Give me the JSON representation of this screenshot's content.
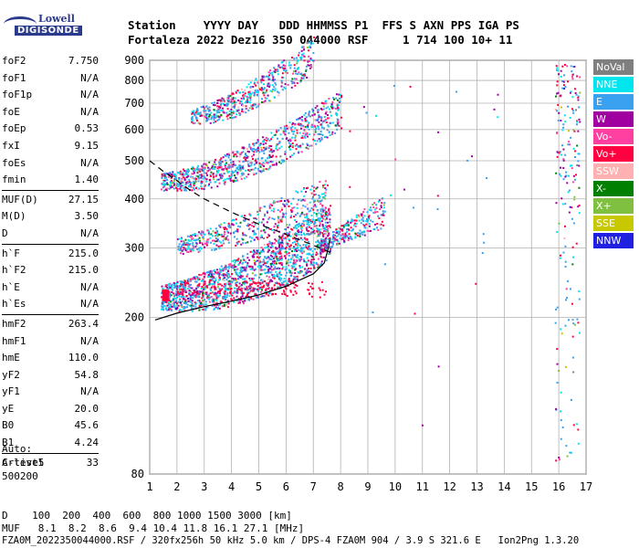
{
  "logo": {
    "line1": "Lowell",
    "line2": "DIGISONDE"
  },
  "header": {
    "line1": "Station    YYYY DAY   DDD HHMMSS P1  FFS S AXN PPS IGA PS",
    "line2": "Fortaleza 2022 Dez16 350 044000 RSF     1 714 100 10+ 11"
  },
  "params": [
    [
      {
        "label": "foF2",
        "value": "7.750"
      },
      {
        "label": "foF1",
        "value": "N/A"
      },
      {
        "label": "foF1p",
        "value": "N/A"
      },
      {
        "label": "foE",
        "value": "N/A"
      },
      {
        "label": "foEp",
        "value": "0.53"
      },
      {
        "label": "fxI",
        "value": "9.15"
      },
      {
        "label": "foEs",
        "value": "N/A"
      },
      {
        "label": "fmin",
        "value": "1.40"
      }
    ],
    [
      {
        "label": "MUF(D)",
        "value": "27.15"
      },
      {
        "label": "M(D)",
        "value": "3.50"
      },
      {
        "label": "D",
        "value": "N/A"
      }
    ],
    [
      {
        "label": "h`F",
        "value": "215.0"
      },
      {
        "label": "h`F2",
        "value": "215.0"
      },
      {
        "label": "h`E",
        "value": "N/A"
      },
      {
        "label": "h`Es",
        "value": "N/A"
      }
    ],
    [
      {
        "label": "hmF2",
        "value": "263.4"
      },
      {
        "label": "hmF1",
        "value": "N/A"
      },
      {
        "label": "hmE",
        "value": "110.0"
      },
      {
        "label": "yF2",
        "value": "54.8"
      },
      {
        "label": "yF1",
        "value": "N/A"
      },
      {
        "label": "yE",
        "value": "20.0"
      },
      {
        "label": "B0",
        "value": "45.6"
      },
      {
        "label": "B1",
        "value": "4.24"
      }
    ],
    [
      {
        "label": "C-level",
        "value": "33"
      }
    ]
  ],
  "auto": {
    "line1": "Auto:",
    "line2": "Artist5",
    "line3": "500200"
  },
  "legend": [
    {
      "label": "NoVal",
      "color": "#7f7f7f"
    },
    {
      "label": "NNE",
      "color": "#00e5ee"
    },
    {
      "label": "E",
      "color": "#3aa0f0"
    },
    {
      "label": "W",
      "color": "#a000a0"
    },
    {
      "label": "Vo-",
      "color": "#ff40a0"
    },
    {
      "label": "Vo+",
      "color": "#ff0040"
    },
    {
      "label": "SSW",
      "color": "#ffb0b0"
    },
    {
      "label": "X-",
      "color": "#008000"
    },
    {
      "label": "X+",
      "color": "#80c040"
    },
    {
      "label": "SSE",
      "color": "#c8c800"
    },
    {
      "label": "NNW",
      "color": "#2020e0"
    }
  ],
  "bottom": {
    "d_line": "D    100  200  400  600  800 1000 1500 3000 [km]",
    "muf_line": "MUF   8.1  8.2  8.6  9.4 10.4 11.8 16.1 27.1 [MHz]",
    "footer": "FZA0M_2022350044000.RSF / 320fx256h 50 kHz 5.0 km / DPS-4 FZA0M 904 / 3.9 S 321.6 E   Ion2Png 1.3.20"
  },
  "chart_data": {
    "type": "scatter",
    "title": "",
    "xlabel": "",
    "ylabel": "",
    "xlim": [
      1,
      17
    ],
    "ylim": [
      80,
      900
    ],
    "yscale": "log",
    "grid": true,
    "x_ticks": [
      1,
      2,
      3,
      4,
      5,
      6,
      7,
      8,
      9,
      10,
      11,
      12,
      13,
      14,
      15,
      16,
      17
    ],
    "y_ticks": [
      80,
      200,
      300,
      400,
      500,
      600,
      700,
      800,
      900
    ],
    "traces": [
      {
        "name": "F-layer first hop",
        "freq_range": [
          1.4,
          8.2
        ],
        "height_range": [
          215,
          400
        ]
      },
      {
        "name": "F-layer second hop",
        "freq_range": [
          1.4,
          8.0
        ],
        "height_range": [
          430,
          650
        ]
      },
      {
        "name": "F-layer third hop",
        "freq_range": [
          2.5,
          7.0
        ],
        "height_range": [
          640,
          900
        ]
      }
    ],
    "profile_solid": {
      "x": [
        1.2,
        2.0,
        3.0,
        4.0,
        5.0,
        6.0,
        7.0,
        7.4,
        7.55,
        7.6
      ],
      "y": [
        197,
        205,
        213,
        220,
        228,
        240,
        258,
        275,
        300,
        315
      ]
    },
    "profile_dashed": {
      "x": [
        1.0,
        1.5,
        2.0,
        2.5,
        3.0,
        4.0,
        5.0,
        6.0,
        7.0,
        7.75
      ],
      "y": [
        500,
        470,
        445,
        420,
        400,
        370,
        345,
        325,
        305,
        290
      ]
    }
  }
}
